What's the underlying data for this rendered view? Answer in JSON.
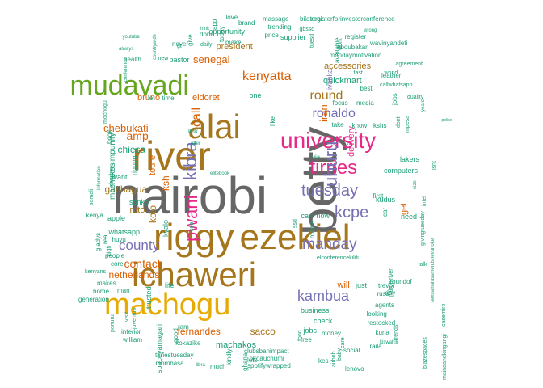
{
  "colors": {
    "teal": "#1b9e77",
    "orange": "#d95f02",
    "purple": "#7570b3",
    "pink": "#e7298a",
    "green": "#66a61e",
    "gold": "#e6ab02",
    "brown": "#a6761d",
    "gray": "#666666"
  },
  "words": [
    {
      "text": "nairobi",
      "color": "gray"
    },
    {
      "text": "betty",
      "color": "gray"
    },
    {
      "text": "river",
      "color": "brown"
    },
    {
      "text": "riggy",
      "color": "brown"
    },
    {
      "text": "ichaweri",
      "color": "brown"
    },
    {
      "text": "alai",
      "color": "brown"
    },
    {
      "text": "ezekiel",
      "color": "brown"
    },
    {
      "text": "mudavadi",
      "color": "green"
    },
    {
      "text": "machogu",
      "color": "gold"
    },
    {
      "text": "university",
      "color": "pink"
    },
    {
      "text": "tirries",
      "color": "pink"
    },
    {
      "text": "pwani",
      "color": "pink"
    },
    {
      "text": "kibra",
      "color": "purple"
    },
    {
      "text": "uhuru",
      "color": "purple"
    },
    {
      "text": "tuesday",
      "color": "purple"
    },
    {
      "text": "kcpe",
      "color": "purple"
    },
    {
      "text": "manday",
      "color": "purple"
    },
    {
      "text": "kambua",
      "color": "purple"
    },
    {
      "text": "ronaldo",
      "color": "purple"
    },
    {
      "text": "round",
      "color": "brown"
    },
    {
      "text": "kenyatta",
      "color": "orange"
    },
    {
      "text": "county",
      "color": "purple"
    },
    {
      "text": "senegal",
      "color": "orange"
    },
    {
      "text": "contact",
      "color": "orange"
    },
    {
      "text": "call",
      "color": "orange"
    },
    {
      "text": "chebukati",
      "color": "orange"
    },
    {
      "text": "amp",
      "color": "orange"
    },
    {
      "text": "chiesa",
      "color": "teal"
    },
    {
      "text": "gachagua",
      "color": "brown"
    },
    {
      "text": "netherlands",
      "color": "orange"
    },
    {
      "text": "fernandes",
      "color": "orange"
    },
    {
      "text": "sacco",
      "color": "brown"
    },
    {
      "text": "machakos",
      "color": "teal"
    },
    {
      "text": "accessories",
      "color": "brown"
    },
    {
      "text": "quickmart",
      "color": "teal"
    },
    {
      "text": "delivery",
      "color": "pink"
    },
    {
      "text": "bruno",
      "color": "orange"
    },
    {
      "text": "eldoret",
      "color": "orange"
    },
    {
      "text": "president",
      "color": "brown"
    },
    {
      "text": "machakosimpunity",
      "color": "teal"
    },
    {
      "text": "iran",
      "color": "orange"
    },
    {
      "text": "ivanka",
      "color": "purple"
    },
    {
      "text": "kolo",
      "color": "brown"
    },
    {
      "text": "ruto",
      "color": "brown"
    },
    {
      "text": "toure",
      "color": "orange"
    },
    {
      "text": "ksh",
      "color": "orange"
    },
    {
      "text": "kyalo",
      "color": "teal"
    },
    {
      "text": "sonko",
      "color": "teal"
    },
    {
      "text": "apple",
      "color": "teal"
    },
    {
      "text": "whatsapp",
      "color": "teal"
    },
    {
      "text": "riggyg",
      "color": "teal"
    },
    {
      "text": "want",
      "color": "teal"
    },
    {
      "text": "trusted",
      "color": "teal"
    },
    {
      "text": "life",
      "color": "teal"
    },
    {
      "text": "spaceyamagari",
      "color": "teal"
    },
    {
      "text": "ikokazike",
      "color": "teal"
    },
    {
      "text": "tirriestuesday",
      "color": "teal"
    },
    {
      "text": "mombasa",
      "color": "teal"
    },
    {
      "text": "libra",
      "color": "teal"
    },
    {
      "text": "much",
      "color": "teal"
    },
    {
      "text": "kindly",
      "color": "teal"
    },
    {
      "text": "ghana",
      "color": "teal"
    },
    {
      "text": "lets",
      "color": "teal"
    },
    {
      "text": "okoauchumi",
      "color": "teal"
    },
    {
      "text": "clubsbanimpact",
      "color": "teal"
    },
    {
      "text": "spotifywrapped",
      "color": "teal"
    },
    {
      "text": "kes",
      "color": "teal"
    },
    {
      "text": "lenovo",
      "color": "teal"
    },
    {
      "text": "business",
      "color": "teal"
    },
    {
      "text": "check",
      "color": "teal"
    },
    {
      "text": "jobs",
      "color": "teal"
    },
    {
      "text": "money",
      "color": "teal"
    },
    {
      "text": "social",
      "color": "teal"
    },
    {
      "text": "kuria",
      "color": "teal"
    },
    {
      "text": "raila",
      "color": "teal"
    },
    {
      "text": "agents",
      "color": "teal"
    },
    {
      "text": "restocked",
      "color": "teal"
    },
    {
      "text": "looking",
      "color": "teal"
    },
    {
      "text": "trevor",
      "color": "teal"
    },
    {
      "text": "russ",
      "color": "teal"
    },
    {
      "text": "kiswahili",
      "color": "teal"
    },
    {
      "text": "will",
      "color": "orange"
    },
    {
      "text": "just",
      "color": "teal"
    },
    {
      "text": "elconferencekilifi",
      "color": "teal"
    },
    {
      "text": "need",
      "color": "teal"
    },
    {
      "text": "lakers",
      "color": "teal"
    },
    {
      "text": "computers",
      "color": "teal"
    },
    {
      "text": "get",
      "color": "orange"
    },
    {
      "text": "givingtuesday",
      "color": "teal"
    },
    {
      "text": "kudus",
      "color": "teal"
    },
    {
      "text": "first",
      "color": "teal"
    },
    {
      "text": "car",
      "color": "teal"
    },
    {
      "text": "can",
      "color": "teal"
    },
    {
      "text": "now",
      "color": "teal"
    },
    {
      "text": "mama",
      "color": "teal"
    },
    {
      "text": "via",
      "color": "teal"
    },
    {
      "text": "take",
      "color": "teal"
    },
    {
      "text": "know",
      "color": "teal"
    },
    {
      "text": "kshs",
      "color": "teal"
    },
    {
      "text": "focus",
      "color": "teal"
    },
    {
      "text": "media",
      "color": "teal"
    },
    {
      "text": "best",
      "color": "teal"
    },
    {
      "text": "fast",
      "color": "teal"
    },
    {
      "text": "mondaymotivation",
      "color": "teal"
    },
    {
      "text": "aboubakar",
      "color": "teal"
    },
    {
      "text": "register",
      "color": "teal"
    },
    {
      "text": "registerforinvestorconference",
      "color": "teal"
    },
    {
      "text": "wavinyandeti",
      "color": "teal"
    },
    {
      "text": "agreement",
      "color": "teal"
    },
    {
      "text": "leather",
      "color": "teal"
    },
    {
      "text": "quality",
      "color": "teal"
    },
    {
      "text": "callwhatsapp",
      "color": "teal"
    },
    {
      "text": "world",
      "color": "teal"
    },
    {
      "text": "years",
      "color": "teal"
    },
    {
      "text": "massage",
      "color": "teal"
    },
    {
      "text": "bilateral",
      "color": "teal"
    },
    {
      "text": "trending",
      "color": "teal"
    },
    {
      "text": "gbssd",
      "color": "teal"
    },
    {
      "text": "price",
      "color": "teal"
    },
    {
      "text": "supplier",
      "color": "teal"
    },
    {
      "text": "tuesd",
      "color": "teal"
    },
    {
      "text": "love",
      "color": "teal"
    },
    {
      "text": "brand",
      "color": "teal"
    },
    {
      "text": "opportunity",
      "color": "teal"
    },
    {
      "text": "make",
      "color": "teal"
    },
    {
      "text": "done",
      "color": "teal"
    },
    {
      "text": "daily",
      "color": "teal"
    },
    {
      "text": "never",
      "color": "teal"
    },
    {
      "text": "pastor",
      "color": "teal"
    },
    {
      "text": "new",
      "color": "teal"
    },
    {
      "text": "health",
      "color": "teal"
    },
    {
      "text": "always",
      "color": "teal"
    },
    {
      "text": "youtube",
      "color": "teal"
    },
    {
      "text": "conference",
      "color": "teal"
    },
    {
      "text": "countrywide",
      "color": "teal"
    },
    {
      "text": "mochogu",
      "color": "teal"
    },
    {
      "text": "let",
      "color": "teal"
    },
    {
      "text": "time",
      "color": "teal"
    },
    {
      "text": "book",
      "color": "teal"
    },
    {
      "text": "information",
      "color": "teal"
    },
    {
      "text": "services",
      "color": "teal"
    },
    {
      "text": "somali",
      "color": "teal"
    },
    {
      "text": "kenya",
      "color": "teal"
    },
    {
      "text": "gladys",
      "color": "teal"
    },
    {
      "text": "real",
      "color": "teal"
    },
    {
      "text": "high",
      "color": "teal"
    },
    {
      "text": "kenyans",
      "color": "teal"
    },
    {
      "text": "people",
      "color": "teal"
    },
    {
      "text": "core",
      "color": "teal"
    },
    {
      "text": "huyu",
      "color": "teal"
    },
    {
      "text": "makes",
      "color": "teal"
    },
    {
      "text": "home",
      "color": "teal"
    },
    {
      "text": "man",
      "color": "teal"
    },
    {
      "text": "generation",
      "color": "teal"
    },
    {
      "text": "visit",
      "color": "teal"
    },
    {
      "text": "juventus",
      "color": "teal"
    },
    {
      "text": "ponuru",
      "color": "teal"
    },
    {
      "text": "interior",
      "color": "teal"
    },
    {
      "text": "william",
      "color": "teal"
    },
    {
      "text": "good",
      "color": "teal"
    },
    {
      "text": "ram",
      "color": "teal"
    },
    {
      "text": "see",
      "color": "teal"
    },
    {
      "text": "link",
      "color": "teal"
    },
    {
      "text": "offer",
      "color": "teal"
    },
    {
      "text": "elitebook",
      "color": "teal"
    },
    {
      "text": "nairobiriver",
      "color": "teal"
    },
    {
      "text": "sexualharassmentisnevarjoke",
      "color": "teal"
    },
    {
      "text": "talk",
      "color": "teal"
    },
    {
      "text": "casemiro",
      "color": "teal"
    },
    {
      "text": "mainaandkingangi",
      "color": "teal"
    },
    {
      "text": "blazespaces",
      "color": "teal"
    },
    {
      "text": "trends",
      "color": "teal"
    },
    {
      "text": "roundof",
      "color": "teal"
    },
    {
      "text": "day",
      "color": "teal"
    },
    {
      "text": "free",
      "color": "teal"
    },
    {
      "text": "food",
      "color": "teal"
    },
    {
      "text": "care",
      "color": "teal"
    },
    {
      "text": "baby",
      "color": "teal"
    },
    {
      "text": "airbnb",
      "color": "teal"
    },
    {
      "text": "ssd",
      "color": "teal"
    },
    {
      "text": "like",
      "color": "teal"
    },
    {
      "text": "one",
      "color": "teal"
    },
    {
      "text": "dont",
      "color": "teal"
    },
    {
      "text": "mpesa",
      "color": "teal"
    },
    {
      "text": "jobs",
      "color": "teal"
    },
    {
      "text": "size",
      "color": "teal"
    },
    {
      "text": "intel",
      "color": "teal"
    },
    {
      "text": "isnt",
      "color": "teal"
    },
    {
      "text": "police",
      "color": "teal"
    },
    {
      "text": "available",
      "color": "teal"
    },
    {
      "text": "work",
      "color": "teal"
    },
    {
      "text": "wrong",
      "color": "teal"
    },
    {
      "text": "app",
      "color": "teal"
    },
    {
      "text": "today",
      "color": "teal"
    },
    {
      "text": "give",
      "color": "teal"
    },
    {
      "text": "think",
      "color": "teal"
    },
    {
      "text": "gt",
      "color": "teal"
    }
  ]
}
